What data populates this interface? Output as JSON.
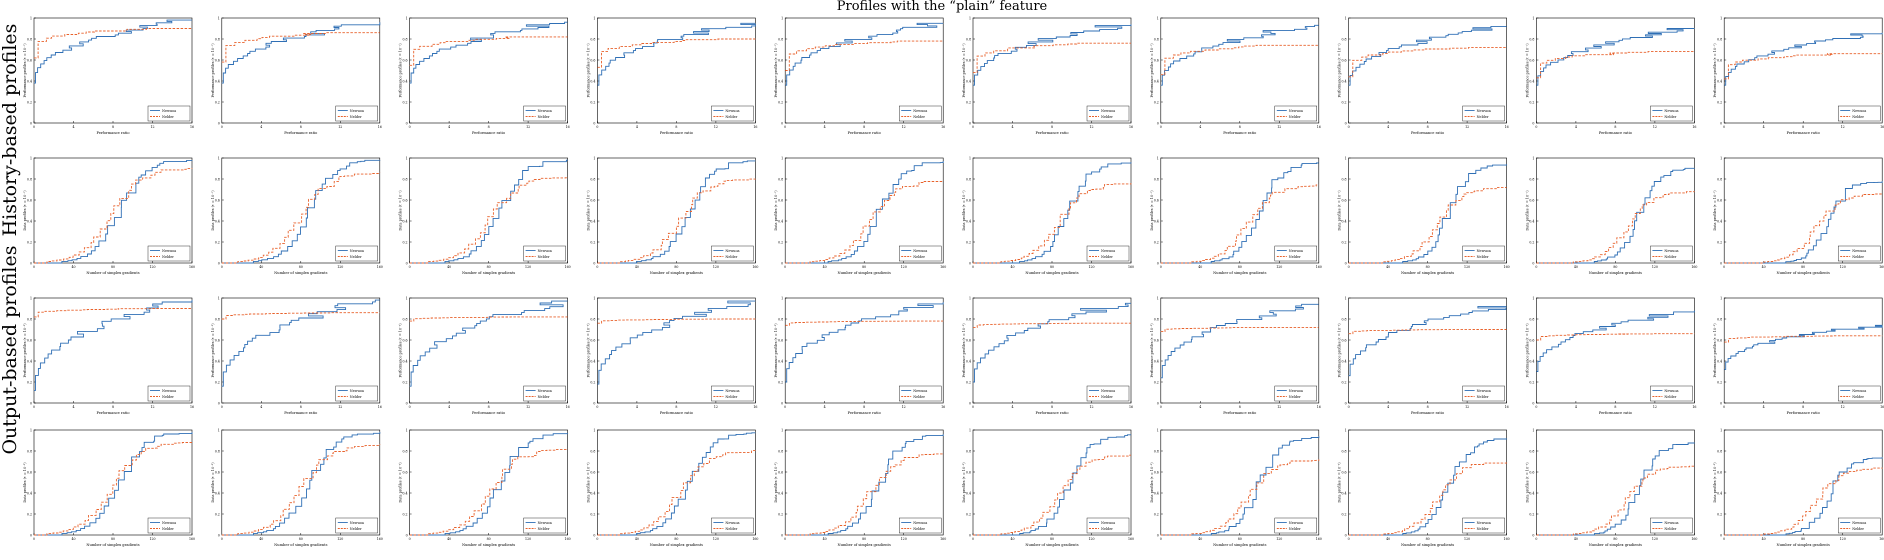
{
  "figure": {
    "title": "Profiles with the “plain” feature",
    "row_groups": [
      "History-based profiles",
      "Output-based profiles"
    ]
  },
  "colors": {
    "fixed": "#2f6fb5",
    "sbo": "#e8622c"
  },
  "chart_data": {
    "type": "line",
    "grid": false,
    "legend_position": "bottom-right",
    "legend": [
      "Newuoa",
      "Nelder"
    ],
    "columns": 10,
    "rows": [
      {
        "kind": "performance",
        "ylabel": "Performance profiles (τ = 10⁻¹)",
        "xlabel": "Performance ratio",
        "xlim": [
          0,
          16
        ],
        "ylim": [
          0,
          1
        ],
        "xticks": [
          0,
          4,
          8,
          12,
          16
        ],
        "yticks": [
          0,
          0.2,
          0.4,
          0.6,
          0.8,
          1
        ],
        "series": [
          {
            "name": "Newuoa",
            "final": [
              0.98,
              0.96,
              0.96,
              0.95,
              0.95,
              0.94,
              0.93,
              0.92,
              0.9,
              0.86
            ],
            "start": [
              0.38,
              0.38,
              0.38,
              0.36,
              0.36,
              0.36,
              0.36,
              0.36,
              0.36,
              0.36
            ]
          },
          {
            "name": "Nelder",
            "final": [
              0.9,
              0.86,
              0.82,
              0.8,
              0.78,
              0.76,
              0.74,
              0.72,
              0.68,
              0.66
            ],
            "start": [
              0.62,
              0.58,
              0.55,
              0.53,
              0.5,
              0.48,
              0.46,
              0.44,
              0.43,
              0.42
            ]
          }
        ]
      },
      {
        "kind": "data",
        "ylabel": "Data profiles (τ = 10⁻¹)",
        "xlabel": "Number of simplex gradients",
        "xlim": [
          0,
          160
        ],
        "ylim": [
          0,
          1
        ],
        "xticks": [
          0,
          40,
          80,
          120,
          160
        ],
        "yticks": [
          0,
          0.2,
          0.4,
          0.6,
          0.8,
          1
        ],
        "series": [
          {
            "name": "Newuoa",
            "final": [
              0.98,
              0.98,
              0.98,
              0.97,
              0.97,
              0.96,
              0.95,
              0.94,
              0.9,
              0.78
            ],
            "mid": [
              0.5,
              0.48,
              0.5,
              0.56,
              0.6,
              0.62,
              0.66,
              0.68,
              0.7,
              0.74
            ]
          },
          {
            "name": "Nelder",
            "final": [
              0.9,
              0.86,
              0.82,
              0.8,
              0.78,
              0.76,
              0.74,
              0.72,
              0.68,
              0.66
            ],
            "mid": [
              0.32,
              0.4,
              0.44,
              0.46,
              0.5,
              0.54,
              0.56,
              0.58,
              0.6,
              0.62
            ]
          }
        ]
      },
      {
        "kind": "performance",
        "ylabel": "Performance profiles (τ = 10⁻³)",
        "xlabel": "Performance ratio",
        "xlim": [
          0,
          16
        ],
        "ylim": [
          0,
          1
        ],
        "xticks": [
          0,
          4,
          8,
          12,
          16
        ],
        "yticks": [
          0,
          0.2,
          0.4,
          0.6,
          0.8,
          1
        ],
        "series": [
          {
            "name": "Newuoa",
            "final": [
              0.98,
              0.98,
              0.97,
              0.97,
              0.96,
              0.95,
              0.94,
              0.92,
              0.88,
              0.74
            ],
            "start": [
              0.12,
              0.16,
              0.16,
              0.18,
              0.2,
              0.2,
              0.24,
              0.26,
              0.3,
              0.32
            ]
          },
          {
            "name": "Nelder",
            "final": [
              0.9,
              0.86,
              0.82,
              0.8,
              0.78,
              0.76,
              0.72,
              0.7,
              0.66,
              0.64
            ],
            "start": [
              0.82,
              0.8,
              0.78,
              0.76,
              0.74,
              0.72,
              0.68,
              0.66,
              0.6,
              0.58
            ]
          }
        ]
      },
      {
        "kind": "data",
        "ylabel": "Data profiles (τ = 10⁻³)",
        "xlabel": "Number of simplex gradients",
        "xlim": [
          0,
          160
        ],
        "ylim": [
          0,
          1
        ],
        "xticks": [
          0,
          40,
          80,
          120,
          160
        ],
        "yticks": [
          0,
          0.2,
          0.4,
          0.6,
          0.8,
          1
        ],
        "series": [
          {
            "name": "Newuoa",
            "final": [
              0.98,
              0.98,
              0.97,
              0.97,
              0.96,
              0.95,
              0.94,
              0.92,
              0.88,
              0.74
            ],
            "mid": [
              0.68,
              0.7,
              0.7,
              0.72,
              0.74,
              0.76,
              0.78,
              0.8,
              0.82,
              0.84
            ]
          },
          {
            "name": "Nelder",
            "final": [
              0.88,
              0.86,
              0.82,
              0.8,
              0.78,
              0.76,
              0.72,
              0.7,
              0.66,
              0.64
            ],
            "mid": [
              0.4,
              0.42,
              0.44,
              0.46,
              0.48,
              0.5,
              0.52,
              0.54,
              0.56,
              0.58
            ]
          }
        ]
      }
    ]
  }
}
